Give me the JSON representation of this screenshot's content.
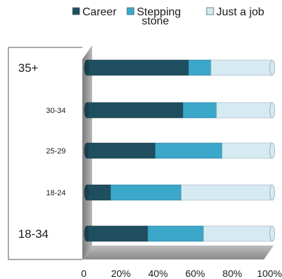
{
  "chart_data": {
    "type": "bar",
    "orientation": "horizontal",
    "stacked": "percent",
    "categories": [
      "35+",
      "30-34",
      "25-29",
      "18-24",
      "18-34"
    ],
    "series": [
      {
        "name": "Career",
        "values": [
          55,
          52,
          37,
          13,
          33
        ]
      },
      {
        "name": "Stepping stone",
        "values": [
          12,
          18,
          36,
          38,
          30
        ]
      },
      {
        "name": "Just a job",
        "values": [
          33,
          30,
          27,
          49,
          37
        ]
      }
    ],
    "xticks": [
      "0",
      "20%",
      "40%",
      "60%",
      "80%",
      "100%"
    ],
    "xlim": [
      0,
      100
    ],
    "legend": {
      "position": "top",
      "labels": [
        "Career",
        "Stepping\nstone",
        "Just a job"
      ]
    },
    "colors": [
      "#1f4e5f",
      "#3ba7c9",
      "#d6eaf2"
    ],
    "emphasized_categories": [
      "35+",
      "18-34"
    ],
    "grid": false
  }
}
